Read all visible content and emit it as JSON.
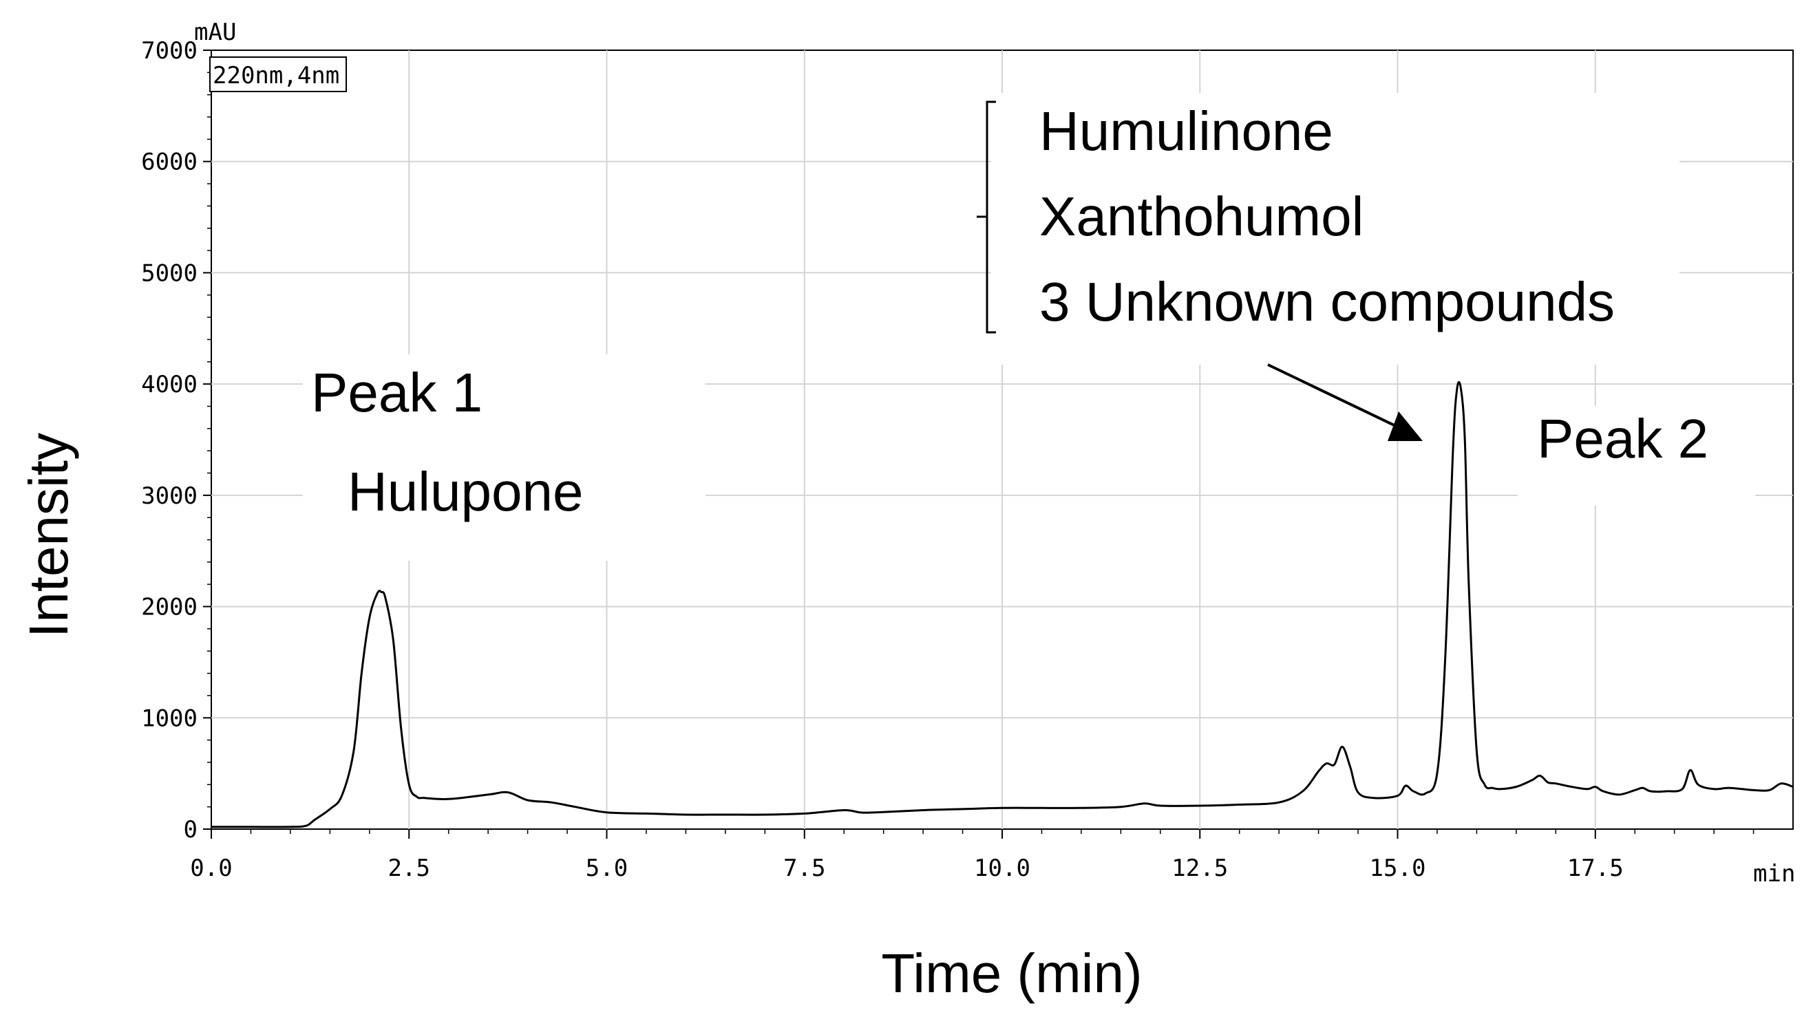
{
  "chart_data": {
    "type": "line",
    "xlabel": "Time (min)",
    "ylabel": "Intensity",
    "y_unit": "mAU",
    "x_unit": "min",
    "detector": "220nm,4nm",
    "xlim": [
      0,
      20
    ],
    "ylim": [
      0,
      7000
    ],
    "x_ticks": [
      0.0,
      2.5,
      5.0,
      7.5,
      10.0,
      12.5,
      15.0,
      17.5
    ],
    "x_tick_labels": [
      "0.0",
      "2.5",
      "5.0",
      "7.5",
      "10.0",
      "12.5",
      "15.0",
      "17.5"
    ],
    "y_ticks": [
      0,
      1000,
      2000,
      3000,
      4000,
      5000,
      6000,
      7000
    ],
    "y_tick_labels": [
      "0",
      "1000",
      "2000",
      "3000",
      "4000",
      "5000",
      "6000",
      "7000"
    ],
    "grid": true,
    "series": [
      {
        "x": [
          0,
          0.5,
          1.0,
          1.2,
          1.3,
          1.5,
          1.65,
          1.8,
          1.9,
          2.0,
          2.1,
          2.15,
          2.2,
          2.3,
          2.4,
          2.5,
          2.6,
          2.7,
          3.0,
          3.5,
          3.75,
          4.0,
          4.3,
          4.6,
          5.0,
          5.5,
          6.0,
          6.5,
          7.0,
          7.5,
          8.0,
          8.2,
          8.4,
          9.0,
          9.5,
          10.0,
          10.5,
          11.0,
          11.5,
          11.8,
          12.0,
          12.5,
          13.0,
          13.5,
          13.8,
          14.0,
          14.1,
          14.2,
          14.3,
          14.4,
          14.5,
          14.7,
          15.0,
          15.1,
          15.2,
          15.35,
          15.5,
          15.6,
          15.7,
          15.75,
          15.8,
          15.85,
          15.9,
          16.0,
          16.1,
          16.2,
          16.3,
          16.5,
          16.7,
          16.8,
          16.9,
          17.0,
          17.2,
          17.4,
          17.5,
          17.6,
          17.8,
          18.0,
          18.1,
          18.2,
          18.4,
          18.6,
          18.7,
          18.8,
          19.0,
          19.2,
          19.5,
          19.7,
          19.85,
          20.0
        ],
        "y": [
          20,
          20,
          20,
          30,
          80,
          180,
          300,
          700,
          1400,
          1900,
          2120,
          2130,
          2080,
          1700,
          900,
          400,
          290,
          280,
          270,
          310,
          330,
          260,
          240,
          200,
          150,
          140,
          130,
          130,
          130,
          140,
          170,
          150,
          150,
          170,
          180,
          190,
          190,
          190,
          200,
          230,
          210,
          210,
          220,
          240,
          340,
          520,
          590,
          580,
          740,
          560,
          330,
          280,
          300,
          390,
          340,
          320,
          500,
          1500,
          3400,
          3950,
          3960,
          3500,
          2200,
          700,
          400,
          370,
          360,
          380,
          440,
          480,
          420,
          410,
          380,
          360,
          380,
          340,
          310,
          350,
          370,
          340,
          340,
          360,
          530,
          400,
          360,
          370,
          350,
          350,
          410,
          380
        ]
      }
    ],
    "annotations": {
      "peak1_label": "Peak 1",
      "peak1_compound": "Hulupone",
      "peak2_label": "Peak 2",
      "bracket_items": [
        "Humulinone",
        "Xanthohumol",
        "3 Unknown compounds"
      ]
    }
  }
}
